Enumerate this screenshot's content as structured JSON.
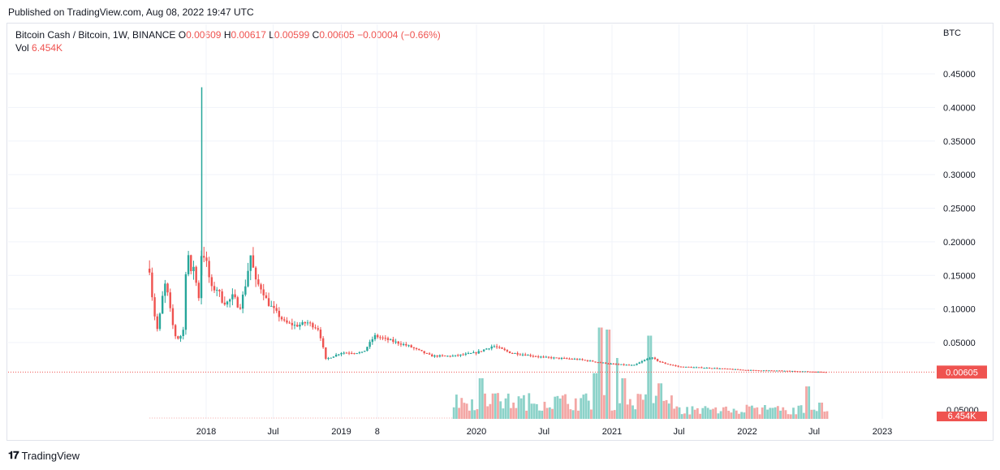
{
  "published": "Published on TradingView.com, Aug 08, 2022 19:47 UTC",
  "legend": {
    "symbol": "Bitcoin Cash / Bitcoin, 1W, BINANCE",
    "open_label": "O",
    "open": "0.00609",
    "high_label": "H",
    "high": "0.00617",
    "low_label": "L",
    "low": "0.00599",
    "close_label": "C",
    "close": "0.00605",
    "change": "−0.00004 (−0.66%)",
    "vol_label": "Vol",
    "vol": "6.454K"
  },
  "currency": "BTC",
  "last_price_label": "0.00605",
  "vol_axis_label": "0.05000",
  "vol_last_label": "6.454K",
  "footer": {
    "brand": "TradingView"
  },
  "colors": {
    "up": "#26a69a",
    "down": "#ef5350",
    "vol_up": "#8cd2c9",
    "vol_down": "#f3a7a5",
    "grid": "#f0f3fa"
  },
  "chart_data": {
    "type": "candlestick",
    "y_axis": {
      "ticks": [
        0.05,
        0.1,
        0.15,
        0.2,
        0.25,
        0.3,
        0.35,
        0.4,
        0.45
      ],
      "labels": [
        "0.05000",
        "0.10000",
        "0.15000",
        "0.20000",
        "0.25000",
        "0.30000",
        "0.35000",
        "0.40000",
        "0.45000"
      ]
    },
    "x_axis": {
      "labels": [
        "2018",
        "Jul",
        "2019",
        "8",
        "2020",
        "Jul",
        "2021",
        "Jul",
        "2022",
        "Jul",
        "2023"
      ],
      "dates": [
        "2018-01-01",
        "2018-07-01",
        "2019-01-01",
        "2019-04-08",
        "2020-01-01",
        "2020-07-01",
        "2021-01-01",
        "2021-07-01",
        "2022-01-01",
        "2022-07-01",
        "2023-01-01"
      ]
    },
    "last_close": 0.00605,
    "price_path": [
      [
        "2017-08-01",
        0.16
      ],
      [
        "2017-08-08",
        0.12
      ],
      [
        "2017-08-15",
        0.09
      ],
      [
        "2017-08-22",
        0.07
      ],
      [
        "2017-09-01",
        0.1
      ],
      [
        "2017-09-10",
        0.14
      ],
      [
        "2017-09-20",
        0.12
      ],
      [
        "2017-10-01",
        0.08
      ],
      [
        "2017-10-10",
        0.06
      ],
      [
        "2017-10-20",
        0.055
      ],
      [
        "2017-11-01",
        0.07
      ],
      [
        "2017-11-10",
        0.2
      ],
      [
        "2017-11-20",
        0.15
      ],
      [
        "2017-12-01",
        0.17
      ],
      [
        "2017-12-10",
        0.1
      ],
      [
        "2017-12-20",
        0.19
      ],
      [
        "2018-01-01",
        0.17
      ],
      [
        "2018-01-15",
        0.13
      ],
      [
        "2018-02-01",
        0.13
      ],
      [
        "2018-02-15",
        0.11
      ],
      [
        "2018-03-01",
        0.11
      ],
      [
        "2018-03-15",
        0.12
      ],
      [
        "2018-04-01",
        0.1
      ],
      [
        "2018-04-15",
        0.13
      ],
      [
        "2018-05-01",
        0.18
      ],
      [
        "2018-05-15",
        0.14
      ],
      [
        "2018-06-01",
        0.13
      ],
      [
        "2018-06-15",
        0.11
      ],
      [
        "2018-07-01",
        0.1
      ],
      [
        "2018-08-01",
        0.08
      ],
      [
        "2018-09-01",
        0.075
      ],
      [
        "2018-10-01",
        0.08
      ],
      [
        "2018-11-01",
        0.07
      ],
      [
        "2018-11-20",
        0.025
      ],
      [
        "2019-01-01",
        0.035
      ],
      [
        "2019-03-01",
        0.035
      ],
      [
        "2019-04-01",
        0.06
      ],
      [
        "2019-05-01",
        0.055
      ],
      [
        "2019-07-01",
        0.045
      ],
      [
        "2019-09-01",
        0.03
      ],
      [
        "2019-11-01",
        0.03
      ],
      [
        "2020-01-01",
        0.035
      ],
      [
        "2020-02-15",
        0.045
      ],
      [
        "2020-04-01",
        0.035
      ],
      [
        "2020-07-01",
        0.028
      ],
      [
        "2020-10-01",
        0.025
      ],
      [
        "2021-01-01",
        0.018
      ],
      [
        "2021-03-01",
        0.016
      ],
      [
        "2021-04-15",
        0.028
      ],
      [
        "2021-05-15",
        0.02
      ],
      [
        "2021-07-01",
        0.014
      ],
      [
        "2021-10-01",
        0.012
      ],
      [
        "2022-01-01",
        0.009
      ],
      [
        "2022-04-01",
        0.008
      ],
      [
        "2022-08-08",
        0.00605
      ]
    ],
    "volume_spikes": [
      [
        "2020-01-15",
        40
      ],
      [
        "2020-02-15",
        25
      ],
      [
        "2020-06-01",
        15
      ],
      [
        "2020-11-15",
        45
      ],
      [
        "2020-12-01",
        90
      ],
      [
        "2020-12-20",
        88
      ],
      [
        "2021-01-15",
        60
      ],
      [
        "2021-02-01",
        40
      ],
      [
        "2021-04-15",
        82
      ],
      [
        "2021-05-10",
        35
      ],
      [
        "2022-06-15",
        32
      ],
      [
        "2022-07-20",
        16
      ]
    ]
  }
}
